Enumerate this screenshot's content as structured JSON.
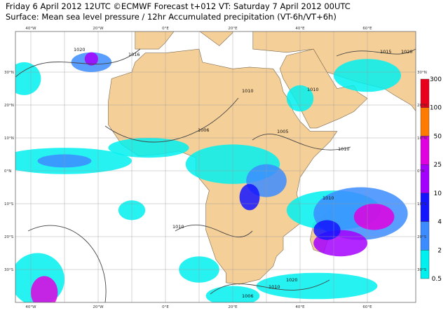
{
  "header": {
    "line1": "Friday 6 April 2012 12UTC ©ECMWF Forecast t+012 VT: Saturday 7 April 2012 00UTC",
    "line2": "Surface: Mean sea level pressure / 12hr Accumulated precipitation (VT-6h/VT+6h)"
  },
  "longitude_labels": [
    "40°W",
    "20°W",
    "0°E",
    "20°E",
    "40°E",
    "60°E"
  ],
  "latitude_labels": [
    "30°N",
    "20°N",
    "10°N",
    "0°N",
    "10°S",
    "20°S",
    "30°S"
  ],
  "colorbar": {
    "labels": [
      300,
      100,
      50,
      25,
      10,
      4,
      2,
      0.5
    ],
    "colors": [
      "#e8001c",
      "#ff7a00",
      "#e000e0",
      "#a400ff",
      "#1414ff",
      "#3c8cff",
      "#00f0f0"
    ]
  },
  "isobar_labels": [
    "1020",
    "1016",
    "1015",
    "1020",
    "1010",
    "1010",
    "1006",
    "1005",
    "1010",
    "1010",
    "1010",
    "1006",
    "1010",
    "1020"
  ]
}
